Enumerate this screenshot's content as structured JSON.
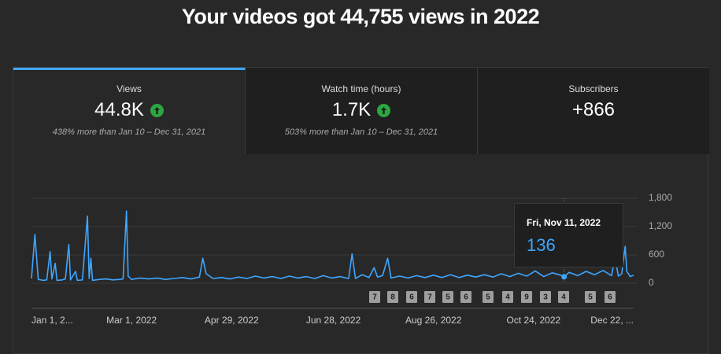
{
  "header": {
    "title": "Your videos got 44,755 views in 2022"
  },
  "cards": [
    {
      "label": "Views",
      "value": "44.8K",
      "comparison": "438% more than Jan 10 – Dec 31, 2021"
    },
    {
      "label": "Watch time (hours)",
      "value": "1.7K",
      "comparison": "503% more than Jan 10 – Dec 31, 2021"
    },
    {
      "label": "Subscribers",
      "value": "+866"
    }
  ],
  "tooltip": {
    "date": "Fri, Nov 11, 2022",
    "value": 136,
    "x": 315
  },
  "event_markers": [
    "7",
    "8",
    "6",
    "7",
    "5",
    "6",
    "5",
    "4",
    "9",
    "3",
    "4",
    "5",
    "6"
  ],
  "chart_data": {
    "type": "line",
    "color": "#3ea6ff",
    "x": [
      1,
      3,
      5,
      8,
      10,
      12,
      13,
      15,
      16,
      19,
      21,
      23,
      24,
      27,
      28,
      31,
      34,
      35,
      36,
      37,
      41,
      45,
      49,
      53,
      55,
      57,
      58,
      60,
      65,
      70,
      75,
      80,
      85,
      90,
      95,
      100,
      102,
      104,
      108,
      113,
      118,
      123,
      128,
      133,
      138,
      143,
      148,
      153,
      158,
      163,
      168,
      173,
      178,
      183,
      188,
      190,
      192,
      196,
      200,
      203,
      205,
      208,
      211,
      213,
      218,
      223,
      228,
      233,
      238,
      243,
      248,
      253,
      258,
      263,
      268,
      273,
      278,
      283,
      288,
      293,
      298,
      303,
      308,
      313,
      315,
      318,
      323,
      328,
      333,
      338,
      343,
      345,
      347,
      349,
      351,
      352,
      354,
      356
    ],
    "values": [
      100,
      1030,
      80,
      60,
      70,
      670,
      90,
      420,
      60,
      70,
      90,
      820,
      70,
      250,
      60,
      70,
      1420,
      100,
      530,
      60,
      80,
      90,
      70,
      80,
      90,
      1530,
      150,
      80,
      110,
      90,
      110,
      80,
      100,
      120,
      90,
      130,
      530,
      200,
      100,
      120,
      90,
      130,
      100,
      150,
      110,
      140,
      100,
      150,
      110,
      140,
      100,
      160,
      110,
      140,
      100,
      620,
      100,
      180,
      120,
      330,
      130,
      160,
      530,
      110,
      150,
      110,
      160,
      120,
      170,
      120,
      180,
      120,
      170,
      130,
      180,
      130,
      200,
      140,
      210,
      150,
      260,
      140,
      220,
      170,
      136,
      230,
      160,
      250,
      180,
      270,
      160,
      550,
      150,
      200,
      780,
      250,
      140,
      170
    ],
    "xlim": [
      1,
      356
    ],
    "xticks": [
      {
        "value": 1,
        "label": "Jan 1, 2..."
      },
      {
        "value": 60,
        "label": "Mar 1, 2022"
      },
      {
        "value": 119,
        "label": "Apr 29, 2022"
      },
      {
        "value": 179,
        "label": "Jun 28, 2022"
      },
      {
        "value": 238,
        "label": "Aug 26, 2022"
      },
      {
        "value": 297,
        "label": "Oct 24, 2022"
      },
      {
        "value": 356,
        "label": "Dec 22, ..."
      }
    ],
    "ylim": [
      0,
      1800
    ],
    "yticks": [
      0,
      600,
      {
        "value": 1200,
        "label": "1,200"
      },
      {
        "value": 1800,
        "label": "1,800"
      }
    ],
    "grid": true
  }
}
